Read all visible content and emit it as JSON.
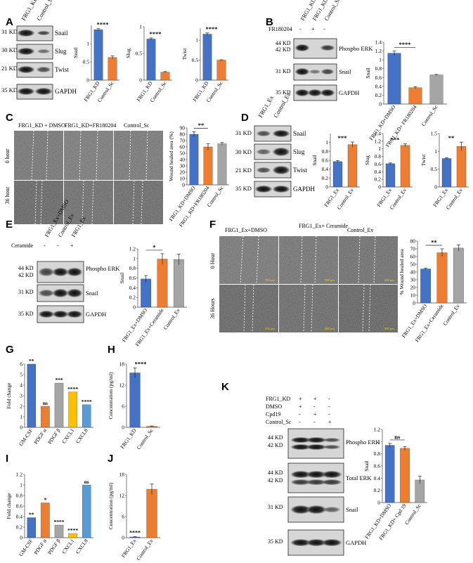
{
  "panels": {
    "A": {
      "letter": "A",
      "lanes": [
        "FRG1_KD",
        "Control_Sc"
      ],
      "kd": [
        "31 KD",
        "30 KD",
        "21 KD",
        "35 KD"
      ],
      "bands": [
        "Snail",
        "Slug",
        "Twist",
        "GAPDH"
      ]
    },
    "B": {
      "letter": "B",
      "lanes": [
        "FRG1_KD+DMSO",
        "FRG1_KD",
        "Control_Sc"
      ],
      "treatment": "FR180204",
      "signs": [
        "-",
        "+",
        "-"
      ],
      "kd": [
        "44 KD",
        "42 KD",
        "31 KD",
        "35 KD"
      ],
      "bands": [
        "Phospho ERK",
        "Snail",
        "GAPDH"
      ]
    },
    "C": {
      "letter": "C",
      "cols": [
        "FRG1_KD + DMSO",
        "FRG1_KD+FR180204",
        "Control_Sc"
      ],
      "rows": [
        "0 hour",
        "36 hour"
      ]
    },
    "D": {
      "letter": "D",
      "lanes": [
        "FRG1_Ex",
        "Control_Ev"
      ],
      "kd": [
        "31 KD",
        "30 KD",
        "21 KD",
        "35 KD"
      ],
      "bands": [
        "Snail",
        "Slug",
        "Twist",
        "GAPDH"
      ]
    },
    "E": {
      "letter": "E",
      "lanes": [
        "FRG1_Ex+DMSO",
        "Control_Ev",
        "FRG1_Ex"
      ],
      "treatment": "Ceramide",
      "signs": [
        "-",
        "-",
        "+"
      ],
      "kd": [
        "44 KD",
        "42 KD",
        "31 KD",
        "35 KD"
      ],
      "bands": [
        "Phospho ERK",
        "Snail",
        "GAPDH"
      ]
    },
    "F": {
      "letter": "F",
      "cols": [
        "FRG1_Ex+DMSO",
        "FRG1_Ex+ Ceramide",
        "Control_Ev"
      ],
      "rows": [
        "0 Hour",
        "36 Hours"
      ],
      "scale": "500 μm"
    },
    "G": {
      "letter": "G"
    },
    "H": {
      "letter": "H"
    },
    "I": {
      "letter": "I"
    },
    "J": {
      "letter": "J"
    },
    "K": {
      "letter": "K",
      "conditions": [
        "FRG1_KD",
        "DMSO",
        "Cpd19",
        "Control_Sc"
      ],
      "signs": [
        [
          "+",
          "+",
          "-"
        ],
        [
          "+",
          "-",
          "-"
        ],
        [
          "-",
          "+",
          "-"
        ],
        [
          "-",
          "-",
          "+"
        ]
      ],
      "kd": [
        "44 KD",
        "42 KD",
        "44 KD",
        "42 KD",
        "31 KD",
        "35 KD"
      ],
      "bands": [
        "Phospho ERK",
        "Total ERK",
        "Snail",
        "GAPDH"
      ]
    }
  },
  "chart_data": [
    {
      "id": "A1",
      "type": "bar",
      "categories": [
        "FRG1_KD",
        "Control_Sc"
      ],
      "values": [
        1.38,
        0.62
      ],
      "errors": [
        0.03,
        0.04
      ],
      "ylabel": "Snail",
      "ylim": [
        0,
        1.5
      ],
      "ticks": [
        "0",
        "0.5",
        "1"
      ],
      "colors": [
        "#4472c4",
        "#ed7d31"
      ],
      "significance": "****"
    },
    {
      "id": "A2",
      "type": "bar",
      "categories": [
        "FRG1_KD",
        "Control_Sc"
      ],
      "values": [
        0.77,
        0.15
      ],
      "errors": [
        0.02,
        0.01
      ],
      "ylabel": "Slug",
      "ylim": [
        0,
        1
      ],
      "ticks": [
        "0",
        "0.5",
        "1"
      ],
      "colors": [
        "#4472c4",
        "#ed7d31"
      ],
      "significance": "****"
    },
    {
      "id": "A3",
      "type": "bar",
      "categories": [
        "FRG1_KD",
        "Control_Sc"
      ],
      "values": [
        1.15,
        0.5
      ],
      "errors": [
        0.03,
        0.01
      ],
      "ylabel": "Twist",
      "ylim": [
        0,
        1.3
      ],
      "ticks": [
        "0",
        "0.5",
        "1"
      ],
      "colors": [
        "#4472c4",
        "#ed7d31"
      ],
      "significance": "****"
    },
    {
      "id": "B",
      "type": "bar",
      "categories": [
        "FRG1_KD+DMSO",
        "FRG1_KD+ FR180204",
        "Control_Sc"
      ],
      "values": [
        1.15,
        0.37,
        0.66
      ],
      "errors": [
        0.05,
        0.02,
        0.01
      ],
      "ylabel": "Snail",
      "ylim": [
        0,
        1.4
      ],
      "ticks": [
        "0",
        "0.2",
        "0.4",
        "0.6",
        "0.8",
        "1",
        "1.2",
        "1.4"
      ],
      "colors": [
        "#4472c4",
        "#ed7d31",
        "#a5a5a5"
      ],
      "significance": "****"
    },
    {
      "id": "C",
      "type": "bar",
      "categories": [
        "FRG1_KD+DMSO",
        "FRG1_KD+FR180204",
        "Control_Sc"
      ],
      "values": [
        80,
        60,
        65
      ],
      "errors": [
        4,
        5,
        2
      ],
      "ylabel": "Wound healed area (%)",
      "ylim": [
        0,
        90
      ],
      "ticks": [
        "0",
        "10",
        "20",
        "30",
        "40",
        "50",
        "60",
        "70",
        "80",
        "90"
      ],
      "colors": [
        "#4472c4",
        "#ed7d31",
        "#a5a5a5"
      ],
      "significance": "**"
    },
    {
      "id": "D1",
      "type": "bar",
      "categories": [
        "FRG1_Ex",
        "Control_Ev"
      ],
      "values": [
        0.57,
        0.95
      ],
      "errors": [
        0.02,
        0.06
      ],
      "ylabel": "Snail",
      "ylim": [
        0,
        1.2
      ],
      "ticks": [
        "0",
        "0.2",
        "0.4",
        "0.6",
        "0.8",
        "1"
      ],
      "colors": [
        "#4472c4",
        "#ed7d31"
      ],
      "significance": "***"
    },
    {
      "id": "D2",
      "type": "bar",
      "categories": [
        "FRG1_Ex",
        "Control_Ev"
      ],
      "values": [
        0.61,
        1.09
      ],
      "errors": [
        0.02,
        0.04
      ],
      "ylabel": "Slug",
      "ylim": [
        0,
        1.4
      ],
      "ticks": [
        "0",
        "0.2",
        "0.4",
        "0.6",
        "0.8",
        "1",
        "1.2",
        "1.4"
      ],
      "colors": [
        "#4472c4",
        "#ed7d31"
      ],
      "significance": "***"
    },
    {
      "id": "D3",
      "type": "bar",
      "categories": [
        "FRG1_Ex",
        "Control_Ev"
      ],
      "values": [
        0.8,
        1.14
      ],
      "errors": [
        0.02,
        0.12
      ],
      "ylabel": "Twist",
      "ylim": [
        0,
        1.5
      ],
      "ticks": [
        "0",
        "0.5",
        "1",
        "1.5"
      ],
      "colors": [
        "#4472c4",
        "#ed7d31"
      ],
      "significance": "**"
    },
    {
      "id": "E",
      "type": "bar",
      "categories": [
        "FRG1_Ex+DMSO",
        "FRG1_Ex+Ceramide",
        "Control_Ev"
      ],
      "values": [
        0.58,
        0.99,
        0.98
      ],
      "errors": [
        0.07,
        0.11,
        0.11
      ],
      "ylabel": "Snail",
      "ylim": [
        0,
        1.2
      ],
      "ticks": [
        "0",
        "0.2",
        "0.4",
        "0.6",
        "0.8",
        "1",
        "1.2"
      ],
      "colors": [
        "#4472c4",
        "#ed7d31",
        "#a5a5a5"
      ],
      "significance": "*"
    },
    {
      "id": "F",
      "type": "bar",
      "categories": [
        "FRG1_Ex+DMSO",
        "FRG1_Ex+Ceramide",
        "Control_Ev"
      ],
      "values": [
        44,
        65,
        71
      ],
      "errors": [
        1,
        5,
        4
      ],
      "ylabel": "% Wound healed area",
      "ylim": [
        0,
        80
      ],
      "ticks": [
        "0",
        "10",
        "20",
        "30",
        "40",
        "50",
        "60",
        "70",
        "80"
      ],
      "colors": [
        "#4472c4",
        "#ed7d31",
        "#a5a5a5"
      ],
      "significance": "**"
    },
    {
      "id": "G",
      "type": "bar",
      "categories": [
        "GM-CSF",
        "PDGF α",
        "PDGF β",
        "CXCL1",
        "CXCL8"
      ],
      "values": [
        6.0,
        2.0,
        4.2,
        3.35,
        2.15
      ],
      "ylabel": "Fold change",
      "ylim": [
        0,
        6
      ],
      "ticks": [
        "0",
        "1",
        "2",
        "3",
        "4",
        "5",
        "6"
      ],
      "colors": [
        "#4472c4",
        "#ed7d31",
        "#a5a5a5",
        "#ffc000",
        "#5b9bd5"
      ],
      "annotations": [
        "**",
        "ns",
        "***",
        "****",
        "****"
      ]
    },
    {
      "id": "H",
      "type": "bar",
      "categories": [
        "FRG1_KD",
        "Control_Sc"
      ],
      "values": [
        15.5,
        0.3
      ],
      "errors": [
        1.4,
        0.1
      ],
      "ylabel": "Concentration (pg/ml)",
      "ylim": [
        0,
        18
      ],
      "ticks": [
        "0",
        "6",
        "12",
        "18"
      ],
      "colors": [
        "#4472c4",
        "#ed7d31"
      ],
      "significance": "****"
    },
    {
      "id": "I",
      "type": "bar",
      "categories": [
        "GM-CSF",
        "PDGF α",
        "PDGF β",
        "CXCL1",
        "CXCL8"
      ],
      "values": [
        0.38,
        0.66,
        0.24,
        0.08,
        1.0
      ],
      "ylabel": "Fold change",
      "ylim": [
        0,
        1.2
      ],
      "ticks": [
        "0",
        "0.2",
        "0.4",
        "0.6",
        "0.8",
        "1",
        "1.2"
      ],
      "colors": [
        "#4472c4",
        "#ed7d31",
        "#a5a5a5",
        "#ffc000",
        "#5b9bd5"
      ],
      "annotations": [
        "**",
        "*",
        "****",
        "****",
        "ns"
      ]
    },
    {
      "id": "J",
      "type": "bar",
      "categories": [
        "FRG1_Ex",
        "Control_Ev"
      ],
      "values": [
        0.2,
        13.8
      ],
      "errors": [
        0.1,
        1.5
      ],
      "ylabel": "Concentration (pg/ml)",
      "ylim": [
        0,
        18
      ],
      "ticks": [
        "0",
        "6",
        "12",
        "18"
      ],
      "colors": [
        "#4472c4",
        "#ed7d31"
      ],
      "significance": "****",
      "sig_at": 0
    },
    {
      "id": "K",
      "type": "bar",
      "categories": [
        "FRG1_KD+DMSO",
        "FRG1_KD+ Cpd 19",
        "Control_Sc"
      ],
      "values": [
        0.94,
        0.89,
        0.37
      ],
      "errors": [
        0.03,
        0.03,
        0.06
      ],
      "ylabel": "Snail",
      "ylim": [
        0,
        1.2
      ],
      "ticks": [
        "0",
        "0.2",
        "0.4",
        "0.6",
        "0.8",
        "1",
        "1.2"
      ],
      "colors": [
        "#4472c4",
        "#ed7d31",
        "#a5a5a5"
      ],
      "significance": "ns"
    }
  ]
}
